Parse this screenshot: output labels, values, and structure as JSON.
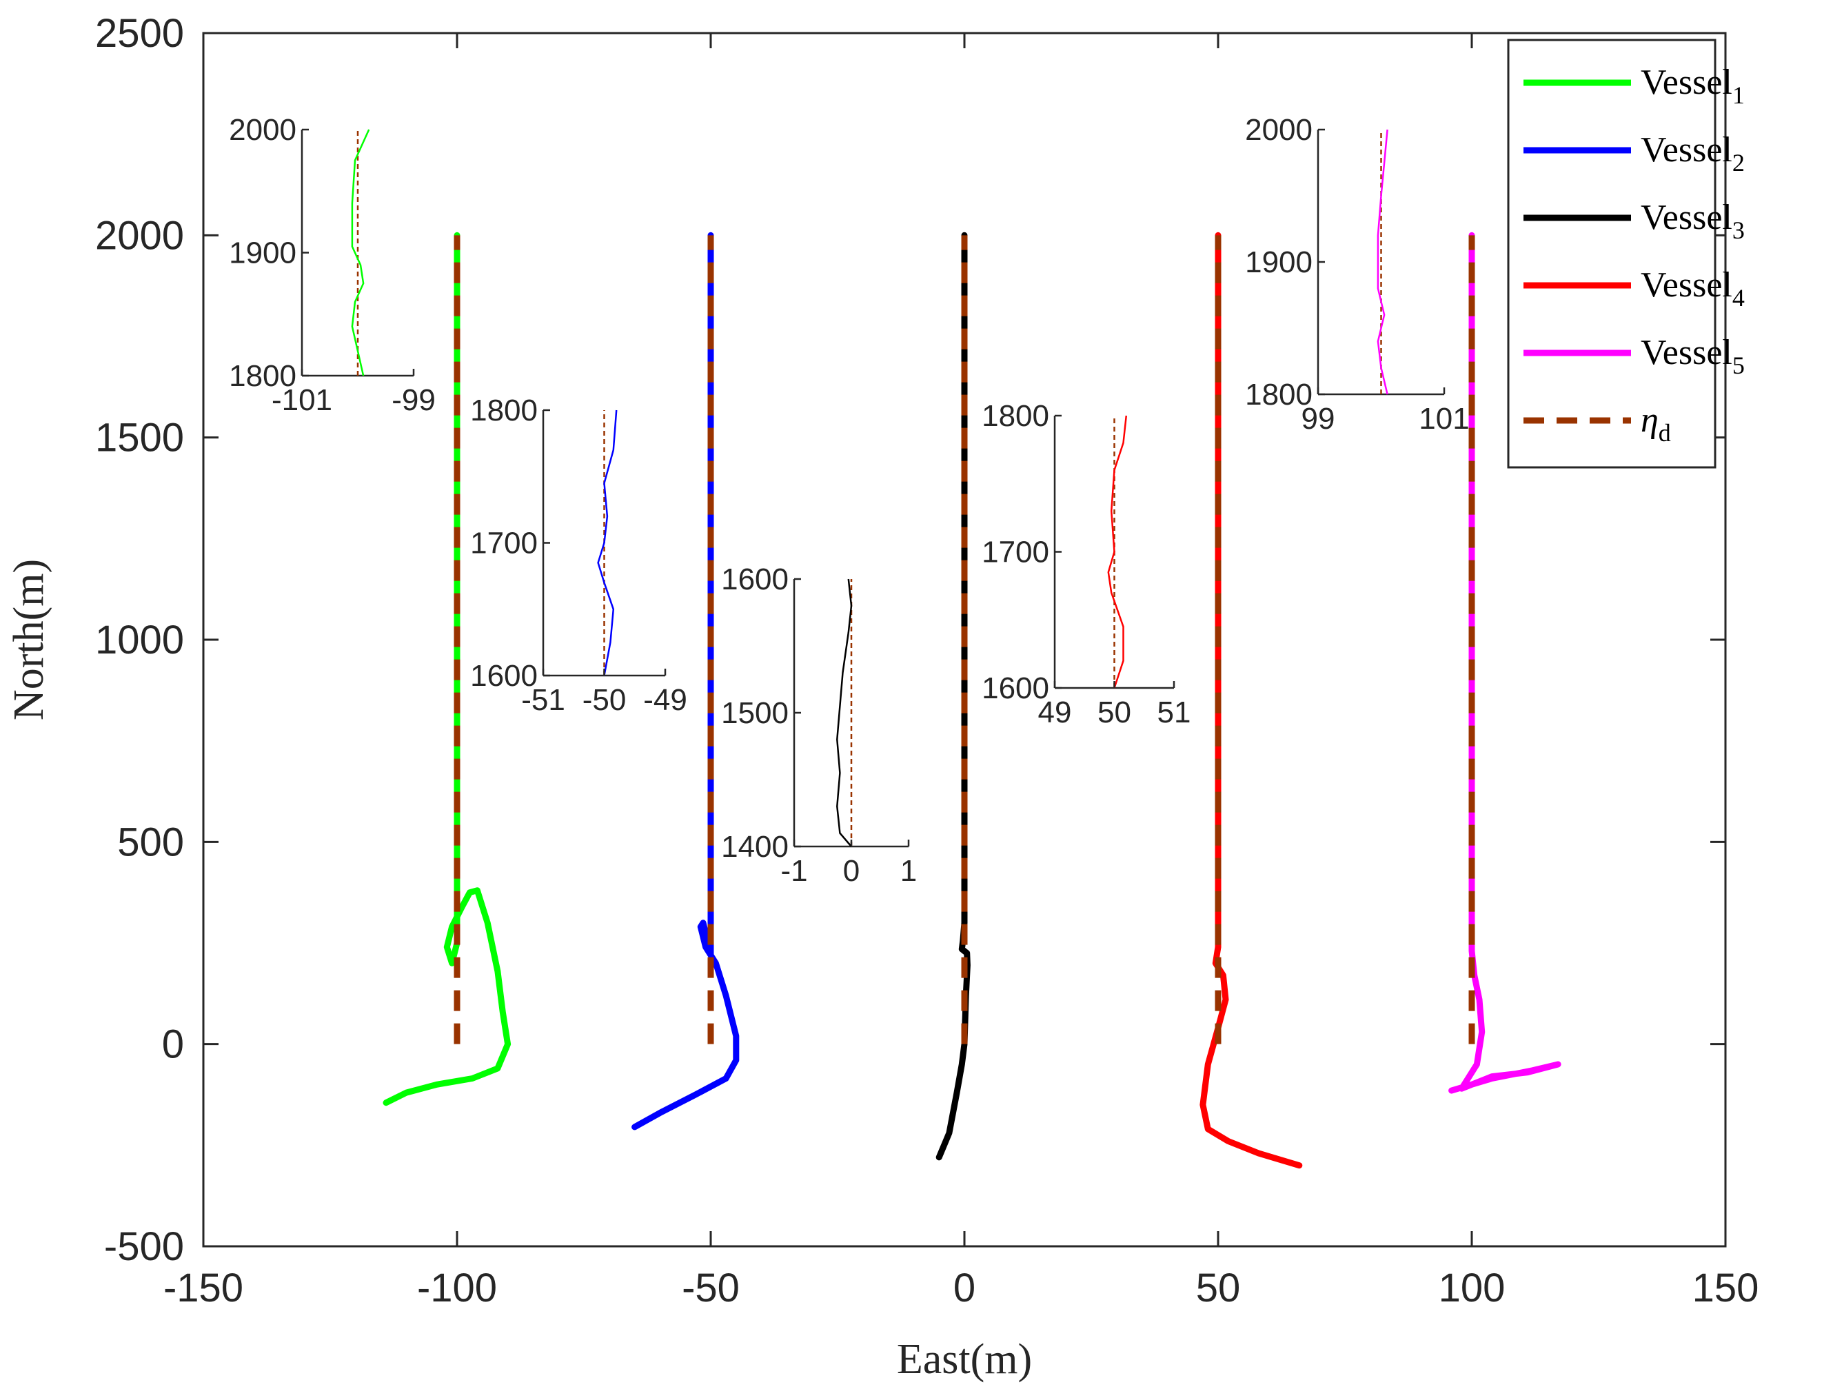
{
  "chart_data": {
    "type": "line",
    "title": "",
    "xlabel": "East(m)",
    "ylabel": "North(m)",
    "xlim": [
      -150,
      150
    ],
    "ylim": [
      -500,
      2500
    ],
    "xticks": [
      "-150",
      "-100",
      "-50",
      "0",
      "50",
      "100",
      "150"
    ],
    "yticks": [
      "-500",
      "0",
      "500",
      "1000",
      "1500",
      "2000",
      "2500"
    ],
    "grid": false,
    "legend_position": "top-right",
    "colors": {
      "Vessel1": "#00ff00",
      "Vessel2": "#0000ff",
      "Vessel3": "#000000",
      "Vessel4": "#ff0000",
      "Vessel5": "#ff00ff",
      "eta_d": "#993300"
    },
    "legend": [
      {
        "key": "Vessel1",
        "label": "Vessel",
        "sub": "1",
        "style": "solid"
      },
      {
        "key": "Vessel2",
        "label": "Vessel",
        "sub": "2",
        "style": "solid"
      },
      {
        "key": "Vessel3",
        "label": "Vessel",
        "sub": "3",
        "style": "solid"
      },
      {
        "key": "Vessel4",
        "label": "Vessel",
        "sub": "4",
        "style": "solid"
      },
      {
        "key": "Vessel5",
        "label": "Vessel",
        "sub": "5",
        "style": "solid"
      },
      {
        "key": "eta_d",
        "label": "η",
        "sub": "d",
        "style": "dashed"
      }
    ],
    "series": [
      {
        "name": "Vessel1",
        "points": [
          [
            -114,
            -145
          ],
          [
            -110,
            -120
          ],
          [
            -104,
            -100
          ],
          [
            -97,
            -85
          ],
          [
            -92,
            -60
          ],
          [
            -90,
            0
          ],
          [
            -91,
            80
          ],
          [
            -92,
            180
          ],
          [
            -94,
            300
          ],
          [
            -96,
            380
          ],
          [
            -97.5,
            375
          ],
          [
            -99,
            340
          ],
          [
            -101,
            290
          ],
          [
            -102,
            240
          ],
          [
            -101,
            200
          ],
          [
            -100,
            250
          ],
          [
            -100,
            330
          ],
          [
            -100,
            500
          ],
          [
            -100,
            1000
          ],
          [
            -100,
            1500
          ],
          [
            -100,
            2000
          ]
        ]
      },
      {
        "name": "Vessel2",
        "points": [
          [
            -65,
            -205
          ],
          [
            -60,
            -170
          ],
          [
            -53,
            -125
          ],
          [
            -47,
            -85
          ],
          [
            -45,
            -40
          ],
          [
            -45,
            20
          ],
          [
            -47,
            120
          ],
          [
            -49,
            200
          ],
          [
            -51,
            240
          ],
          [
            -52,
            290
          ],
          [
            -51.5,
            300
          ],
          [
            -50.5,
            250
          ],
          [
            -50,
            220
          ],
          [
            -50,
            300
          ],
          [
            -50,
            500
          ],
          [
            -50,
            1000
          ],
          [
            -50,
            1500
          ],
          [
            -50,
            2000
          ]
        ]
      },
      {
        "name": "Vessel3",
        "points": [
          [
            -5,
            -280
          ],
          [
            -3,
            -220
          ],
          [
            -1.5,
            -120
          ],
          [
            -0.5,
            -50
          ],
          [
            0,
            0
          ],
          [
            0.3,
            120
          ],
          [
            0.6,
            195
          ],
          [
            0.5,
            225
          ],
          [
            -0.5,
            235
          ],
          [
            -0.3,
            255
          ],
          [
            0,
            300
          ],
          [
            0,
            500
          ],
          [
            0,
            1000
          ],
          [
            0,
            1500
          ],
          [
            0,
            2000
          ]
        ]
      },
      {
        "name": "Vessel4",
        "points": [
          [
            66,
            -300
          ],
          [
            58,
            -270
          ],
          [
            52,
            -240
          ],
          [
            48,
            -210
          ],
          [
            47,
            -150
          ],
          [
            48,
            -50
          ],
          [
            50,
            40
          ],
          [
            51.5,
            110
          ],
          [
            51,
            170
          ],
          [
            49.5,
            200
          ],
          [
            50,
            240
          ],
          [
            50,
            500
          ],
          [
            50,
            1000
          ],
          [
            50,
            1500
          ],
          [
            50,
            2000
          ]
        ]
      },
      {
        "name": "Vessel5",
        "points": [
          [
            96,
            -115
          ],
          [
            104,
            -85
          ],
          [
            112,
            -65
          ],
          [
            117,
            -50
          ],
          [
            111,
            -70
          ],
          [
            104,
            -80
          ],
          [
            100,
            -100
          ],
          [
            98,
            -110
          ],
          [
            101,
            -50
          ],
          [
            102,
            30
          ],
          [
            101.5,
            110
          ],
          [
            100.5,
            170
          ],
          [
            100,
            230
          ],
          [
            100,
            260
          ],
          [
            100,
            500
          ],
          [
            100,
            1000
          ],
          [
            100,
            1500
          ],
          [
            100,
            2000
          ]
        ]
      },
      {
        "name": "eta_d",
        "style": "dashed",
        "segments": [
          {
            "x": -100,
            "y": [
              0,
              2000
            ]
          },
          {
            "x": -50,
            "y": [
              0,
              2000
            ]
          },
          {
            "x": 0,
            "y": [
              0,
              2000
            ]
          },
          {
            "x": 50,
            "y": [
              0,
              2000
            ]
          },
          {
            "x": 100,
            "y": [
              0,
              2000
            ]
          }
        ]
      }
    ],
    "insets": [
      {
        "vessel": "Vessel1",
        "xlim": [
          -101,
          -99
        ],
        "ylim": [
          1800,
          2000
        ],
        "xticks": [
          "-101",
          "-99"
        ],
        "xtick_values": [
          -101,
          -99
        ],
        "yticks": [
          "1800",
          "1900",
          "2000"
        ],
        "ref_x": -100,
        "trace": [
          [
            -99.9,
            1800
          ],
          [
            -100.0,
            1820
          ],
          [
            -100.1,
            1840
          ],
          [
            -100.05,
            1860
          ],
          [
            -99.9,
            1875
          ],
          [
            -99.95,
            1890
          ],
          [
            -100.1,
            1905
          ],
          [
            -100.1,
            1940
          ],
          [
            -100.05,
            1975
          ],
          [
            -99.8,
            2000
          ]
        ]
      },
      {
        "vessel": "Vessel2",
        "xlim": [
          -51,
          -49
        ],
        "ylim": [
          1600,
          1800
        ],
        "xticks": [
          "-51",
          "-50",
          "-49"
        ],
        "xtick_values": [
          -51,
          -50,
          -49
        ],
        "yticks": [
          "1600",
          "1700",
          "1800"
        ],
        "ref_x": -50,
        "trace": [
          [
            -50,
            1600
          ],
          [
            -49.9,
            1625
          ],
          [
            -49.85,
            1650
          ],
          [
            -50,
            1670
          ],
          [
            -50.1,
            1685
          ],
          [
            -50,
            1700
          ],
          [
            -49.95,
            1720
          ],
          [
            -50,
            1745
          ],
          [
            -49.85,
            1770
          ],
          [
            -49.8,
            1800
          ]
        ]
      },
      {
        "vessel": "Vessel3",
        "xlim": [
          -1,
          1
        ],
        "ylim": [
          1400,
          1600
        ],
        "xticks": [
          "-1",
          "0",
          "1"
        ],
        "xtick_values": [
          -1,
          0,
          1
        ],
        "yticks": [
          "1400",
          "1500",
          "1600"
        ],
        "ref_x": 0,
        "trace": [
          [
            0,
            1400
          ],
          [
            -0.2,
            1410
          ],
          [
            -0.25,
            1430
          ],
          [
            -0.2,
            1455
          ],
          [
            -0.25,
            1480
          ],
          [
            -0.15,
            1530
          ],
          [
            -0.05,
            1560
          ],
          [
            0,
            1580
          ],
          [
            -0.05,
            1600
          ]
        ]
      },
      {
        "vessel": "Vessel4",
        "xlim": [
          49,
          51
        ],
        "ylim": [
          1600,
          1800
        ],
        "xticks": [
          "49",
          "50",
          "51"
        ],
        "xtick_values": [
          49,
          50,
          51
        ],
        "yticks": [
          "1600",
          "1700",
          "1800"
        ],
        "ref_x": 50,
        "trace": [
          [
            50,
            1600
          ],
          [
            50.15,
            1620
          ],
          [
            50.15,
            1645
          ],
          [
            49.95,
            1670
          ],
          [
            49.9,
            1685
          ],
          [
            50,
            1700
          ],
          [
            49.95,
            1730
          ],
          [
            50,
            1760
          ],
          [
            50.15,
            1780
          ],
          [
            50.2,
            1800
          ]
        ]
      },
      {
        "vessel": "Vessel5",
        "xlim": [
          99,
          101
        ],
        "ylim": [
          1800,
          2000
        ],
        "xticks": [
          "99",
          "101"
        ],
        "xtick_values": [
          99,
          101
        ],
        "yticks": [
          "1800",
          "1900",
          "2000"
        ],
        "ref_x": 100,
        "trace": [
          [
            100.1,
            1800
          ],
          [
            100.0,
            1820
          ],
          [
            99.95,
            1840
          ],
          [
            100.05,
            1860
          ],
          [
            99.95,
            1880
          ],
          [
            99.95,
            1920
          ],
          [
            100.0,
            1950
          ],
          [
            100.05,
            1975
          ],
          [
            100.1,
            2000
          ]
        ]
      }
    ]
  }
}
